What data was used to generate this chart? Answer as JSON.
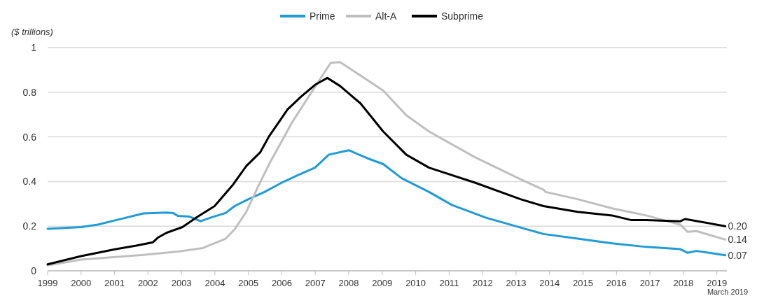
{
  "chart_data": {
    "type": "line",
    "ylabel": "($ trillions)",
    "xlim": [
      1999,
      2019.3
    ],
    "ylim": [
      0,
      1
    ],
    "xticks": [
      1999,
      2000,
      2001,
      2002,
      2003,
      2004,
      2005,
      2006,
      2007,
      2008,
      2009,
      2010,
      2011,
      2012,
      2013,
      2014,
      2015,
      2016,
      2017,
      2018,
      2019
    ],
    "yticks": [
      0,
      0.2,
      0.4,
      0.6,
      0.8,
      1
    ],
    "grid": "y",
    "legend": "top",
    "marker": "none",
    "line_style": "solid",
    "series": [
      {
        "name": "Prime",
        "color": "#1f9bd7",
        "x": [
          1999.0,
          2000.0,
          2000.5,
          2001.04,
          2001.86,
          2002.55,
          2002.75,
          2002.89,
          2003.23,
          2003.57,
          2003.91,
          2004.32,
          2004.59,
          2005.0,
          2005.48,
          2005.96,
          2006.44,
          2006.99,
          2007.4,
          2008.0,
          2008.56,
          2009.03,
          2009.58,
          2010.4,
          2011.08,
          2012.1,
          2013.13,
          2013.82,
          2014.84,
          2015.87,
          2016.89,
          2017.91,
          2018.12,
          2018.39,
          2019.25
        ],
        "values": [
          0.188,
          0.196,
          0.207,
          0.227,
          0.257,
          0.261,
          0.259,
          0.246,
          0.243,
          0.222,
          0.24,
          0.259,
          0.29,
          0.321,
          0.353,
          0.392,
          0.426,
          0.462,
          0.52,
          0.54,
          0.504,
          0.478,
          0.415,
          0.353,
          0.295,
          0.238,
          0.194,
          0.165,
          0.144,
          0.123,
          0.107,
          0.097,
          0.081,
          0.089,
          0.07
        ],
        "value_labels": [
          null,
          null,
          null,
          null,
          null,
          null,
          null,
          null,
          null,
          null,
          null,
          null,
          null,
          null,
          null,
          null,
          null,
          null,
          null,
          null,
          null,
          null,
          null,
          null,
          null,
          null,
          null,
          null,
          null,
          null,
          null,
          null,
          null,
          null,
          "0.07"
        ]
      },
      {
        "name": "Alt-A",
        "color": "#bfbfbf",
        "x": [
          1999.0,
          2000.0,
          2001.86,
          2002.89,
          2003.64,
          2004.32,
          2004.59,
          2004.94,
          2005.28,
          2005.62,
          2006.31,
          2006.85,
          2007.46,
          2007.74,
          2008.35,
          2009.03,
          2009.72,
          2010.4,
          2011.77,
          2013.13,
          2013.82,
          2013.89,
          2014.84,
          2015.87,
          2016.89,
          2017.91,
          2018.12,
          2018.39,
          2019.25
        ],
        "values": [
          0.024,
          0.05,
          0.071,
          0.086,
          0.102,
          0.144,
          0.186,
          0.265,
          0.374,
          0.478,
          0.666,
          0.791,
          0.932,
          0.935,
          0.875,
          0.807,
          0.697,
          0.624,
          0.509,
          0.41,
          0.363,
          0.353,
          0.321,
          0.28,
          0.248,
          0.207,
          0.175,
          0.178,
          0.14
        ],
        "value_labels": [
          null,
          null,
          null,
          null,
          null,
          null,
          null,
          null,
          null,
          null,
          null,
          null,
          null,
          null,
          null,
          null,
          null,
          null,
          null,
          null,
          null,
          null,
          null,
          null,
          null,
          null,
          null,
          null,
          "0.14"
        ]
      },
      {
        "name": "Subprime",
        "color": "#000000",
        "x": [
          1999.0,
          2000.0,
          2001.04,
          2001.65,
          2002.15,
          2002.3,
          2002.55,
          2003.03,
          2003.44,
          2003.99,
          2004.53,
          2004.94,
          2005.35,
          2005.62,
          2005.96,
          2006.17,
          2006.58,
          2006.99,
          2007.36,
          2007.74,
          2008.35,
          2009.03,
          2009.72,
          2010.4,
          2011.77,
          2013.13,
          2013.82,
          2014.84,
          2015.87,
          2016.45,
          2016.89,
          2017.91,
          2018.05,
          2019.25
        ],
        "values": [
          0.029,
          0.066,
          0.097,
          0.113,
          0.128,
          0.149,
          0.17,
          0.196,
          0.238,
          0.29,
          0.384,
          0.47,
          0.53,
          0.603,
          0.677,
          0.723,
          0.781,
          0.833,
          0.864,
          0.828,
          0.75,
          0.624,
          0.52,
          0.462,
          0.395,
          0.321,
          0.29,
          0.264,
          0.248,
          0.227,
          0.227,
          0.222,
          0.232,
          0.2
        ],
        "value_labels": [
          null,
          null,
          null,
          null,
          null,
          null,
          null,
          null,
          null,
          null,
          null,
          null,
          null,
          null,
          null,
          null,
          null,
          null,
          null,
          null,
          null,
          null,
          null,
          null,
          null,
          null,
          null,
          null,
          null,
          null,
          null,
          null,
          null,
          "0.20"
        ]
      }
    ],
    "annotations": [
      "March 2019"
    ]
  }
}
